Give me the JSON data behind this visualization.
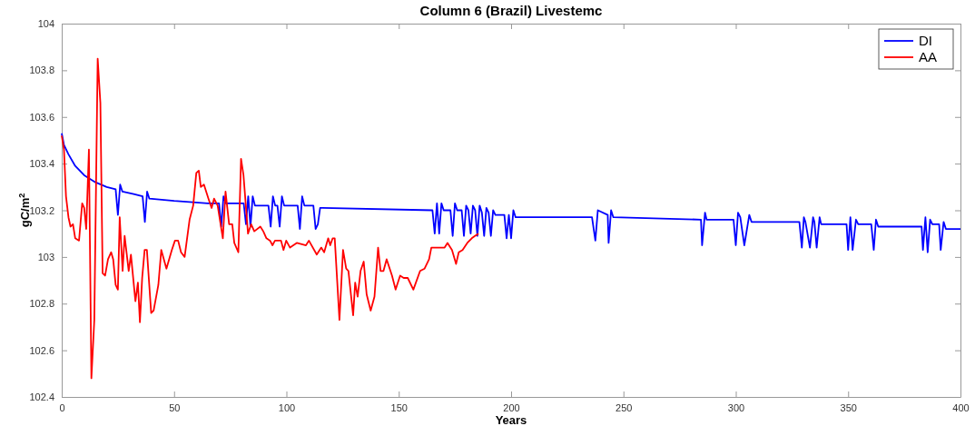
{
  "chart_data": {
    "type": "line",
    "title": "Column 6 (Brazil) Livestemc",
    "xlabel": "Years",
    "ylabel": "gC/m$^{2}$",
    "xlim": [
      0,
      400
    ],
    "xticks": [
      0,
      50,
      100,
      150,
      200,
      250,
      300,
      350,
      400
    ],
    "ylim": [
      102.4,
      104
    ],
    "yticks": [
      102.4,
      102.6,
      102.8,
      103,
      103.2,
      103.4,
      103.6,
      103.8,
      104
    ],
    "legend": "top right",
    "line_style": "solid",
    "marker": "none",
    "series": [
      {
        "name": "DI",
        "color": "#0000ff",
        "x": [
          0,
          1,
          3,
          6,
          10,
          15,
          20,
          24,
          25,
          26,
          27,
          32,
          36,
          37,
          38,
          39,
          50,
          65,
          70,
          71,
          72,
          73,
          81,
          82,
          83,
          84,
          85,
          86,
          92,
          93,
          94,
          95,
          96,
          97,
          98,
          99,
          105,
          106,
          107,
          108,
          112,
          113,
          114,
          115,
          116,
          165,
          166,
          167,
          168,
          169,
          170,
          173,
          174,
          175,
          176,
          178,
          179,
          180,
          181,
          182,
          183,
          184,
          185,
          186,
          187,
          188,
          189,
          190,
          191,
          192,
          193,
          197,
          198,
          199,
          200,
          201,
          202,
          203,
          236,
          237.5,
          238.6,
          243,
          243.4,
          244.5,
          245.5,
          284.5,
          285,
          286.3,
          287,
          299,
          300,
          301,
          302,
          303.8,
          306,
          307,
          328.3,
          329.4,
          330.3,
          331,
          333,
          334.4,
          335,
          336,
          337.3,
          338,
          349.3,
          350,
          351,
          352,
          353.5,
          354.5,
          360.3,
          361.4,
          362.4,
          363.4,
          382.7,
          383.3,
          384.4,
          385.4,
          386.5,
          387.5,
          390.5,
          391.2,
          392.5,
          393.5,
          400
        ],
        "values": [
          103.53,
          103.48,
          103.44,
          103.39,
          103.35,
          103.32,
          103.3,
          103.29,
          103.18,
          103.31,
          103.28,
          103.27,
          103.26,
          103.15,
          103.28,
          103.25,
          103.24,
          103.23,
          103.23,
          103.13,
          103.26,
          103.23,
          103.23,
          103.14,
          103.26,
          103.13,
          103.26,
          103.22,
          103.22,
          103.13,
          103.26,
          103.22,
          103.22,
          103.13,
          103.26,
          103.22,
          103.22,
          103.12,
          103.26,
          103.22,
          103.22,
          103.12,
          103.14,
          103.21,
          103.21,
          103.2,
          103.1,
          103.23,
          103.1,
          103.23,
          103.2,
          103.2,
          103.09,
          103.23,
          103.2,
          103.2,
          103.09,
          103.22,
          103.2,
          103.1,
          103.22,
          103.2,
          103.09,
          103.22,
          103.19,
          103.09,
          103.21,
          103.19,
          103.09,
          103.2,
          103.18,
          103.18,
          103.08,
          103.18,
          103.08,
          103.2,
          103.17,
          103.17,
          103.17,
          103.07,
          103.2,
          103.18,
          103.06,
          103.2,
          103.17,
          103.16,
          103.05,
          103.19,
          103.16,
          103.16,
          103.05,
          103.19,
          103.17,
          103.05,
          103.18,
          103.15,
          103.15,
          103.04,
          103.17,
          103.15,
          103.04,
          103.17,
          103.15,
          103.04,
          103.17,
          103.14,
          103.14,
          103.03,
          103.17,
          103.03,
          103.16,
          103.14,
          103.14,
          103.03,
          103.16,
          103.13,
          103.13,
          103.03,
          103.17,
          103.02,
          103.16,
          103.14,
          103.14,
          103.03,
          103.15,
          103.12,
          103.12
        ]
      },
      {
        "name": "AA",
        "color": "#ff0000",
        "x": [
          0,
          1,
          1.9,
          3,
          3.9,
          5,
          6,
          7.7,
          9.1,
          10,
          10.9,
          12.1,
          13.2,
          14.5,
          16,
          17.2,
          18.2,
          19.3,
          20.6,
          22,
          22.9,
          24,
          25,
          25.8,
          27.1,
          28,
          29.8,
          30.8,
          32.8,
          33.9,
          34.8,
          35.8,
          36.9,
          37.9,
          39.8,
          40.9,
          43,
          44.3,
          46.6,
          49,
          50.4,
          51.8,
          53.1,
          54.7,
          56.9,
          58.5,
          59.9,
          61,
          61.9,
          63.3,
          65.3,
          66.7,
          67.8,
          69.4,
          71.7,
          72.9,
          74.5,
          75.9,
          76.8,
          78.6,
          79.8,
          80.9,
          82.9,
          84.3,
          85.7,
          88.4,
          89.7,
          91.1,
          92.7,
          93.8,
          94.9,
          97.6,
          98.7,
          99.9,
          101.6,
          104.6,
          108.7,
          110,
          113.5,
          115.5,
          116.8,
          118.6,
          119.5,
          120.6,
          121.5,
          123.6,
          125.2,
          126.6,
          127.6,
          129.7,
          130.6,
          131.7,
          133,
          134.4,
          135.7,
          137.5,
          139.2,
          140.8,
          141.9,
          143.2,
          144.6,
          147,
          148.6,
          150.6,
          152.2,
          154,
          156.5,
          159.5,
          161.5,
          163.5,
          164.5,
          167.6,
          170.4,
          171.7,
          173.7,
          175.5,
          176.7,
          178.4,
          180.5,
          182.5,
          183.9,
          185.5
        ],
        "values": [
          103.52,
          103.46,
          103.26,
          103.17,
          103.13,
          103.14,
          103.08,
          103.07,
          103.23,
          103.21,
          103.12,
          103.46,
          102.48,
          102.73,
          103.85,
          103.66,
          102.93,
          102.92,
          102.99,
          103.02,
          102.99,
          102.88,
          102.86,
          103.17,
          102.94,
          103.09,
          102.94,
          103.01,
          102.81,
          102.89,
          102.72,
          102.91,
          103.03,
          103.03,
          102.76,
          102.77,
          102.88,
          103.03,
          102.95,
          103.03,
          103.07,
          103.07,
          103.02,
          103,
          103.16,
          103.22,
          103.36,
          103.37,
          103.3,
          103.31,
          103.25,
          103.21,
          103.25,
          103.22,
          103.08,
          103.28,
          103.14,
          103.14,
          103.06,
          103.02,
          103.42,
          103.35,
          103.1,
          103.14,
          103.11,
          103.13,
          103.11,
          103.08,
          103.07,
          103.05,
          103.07,
          103.07,
          103.03,
          103.07,
          103.04,
          103.06,
          103.05,
          103.07,
          103.01,
          103.04,
          103.02,
          103.08,
          103.05,
          103.08,
          103.08,
          102.73,
          103.03,
          102.95,
          102.94,
          102.75,
          102.89,
          102.83,
          102.94,
          102.98,
          102.84,
          102.77,
          102.83,
          103.04,
          102.94,
          102.94,
          102.99,
          102.92,
          102.86,
          102.92,
          102.91,
          102.91,
          102.86,
          102.94,
          102.95,
          102.99,
          103.04,
          103.04,
          103.04,
          103.06,
          103.03,
          102.97,
          103.02,
          103.03,
          103.06,
          103.08,
          103.09,
          103.1
        ]
      }
    ]
  }
}
